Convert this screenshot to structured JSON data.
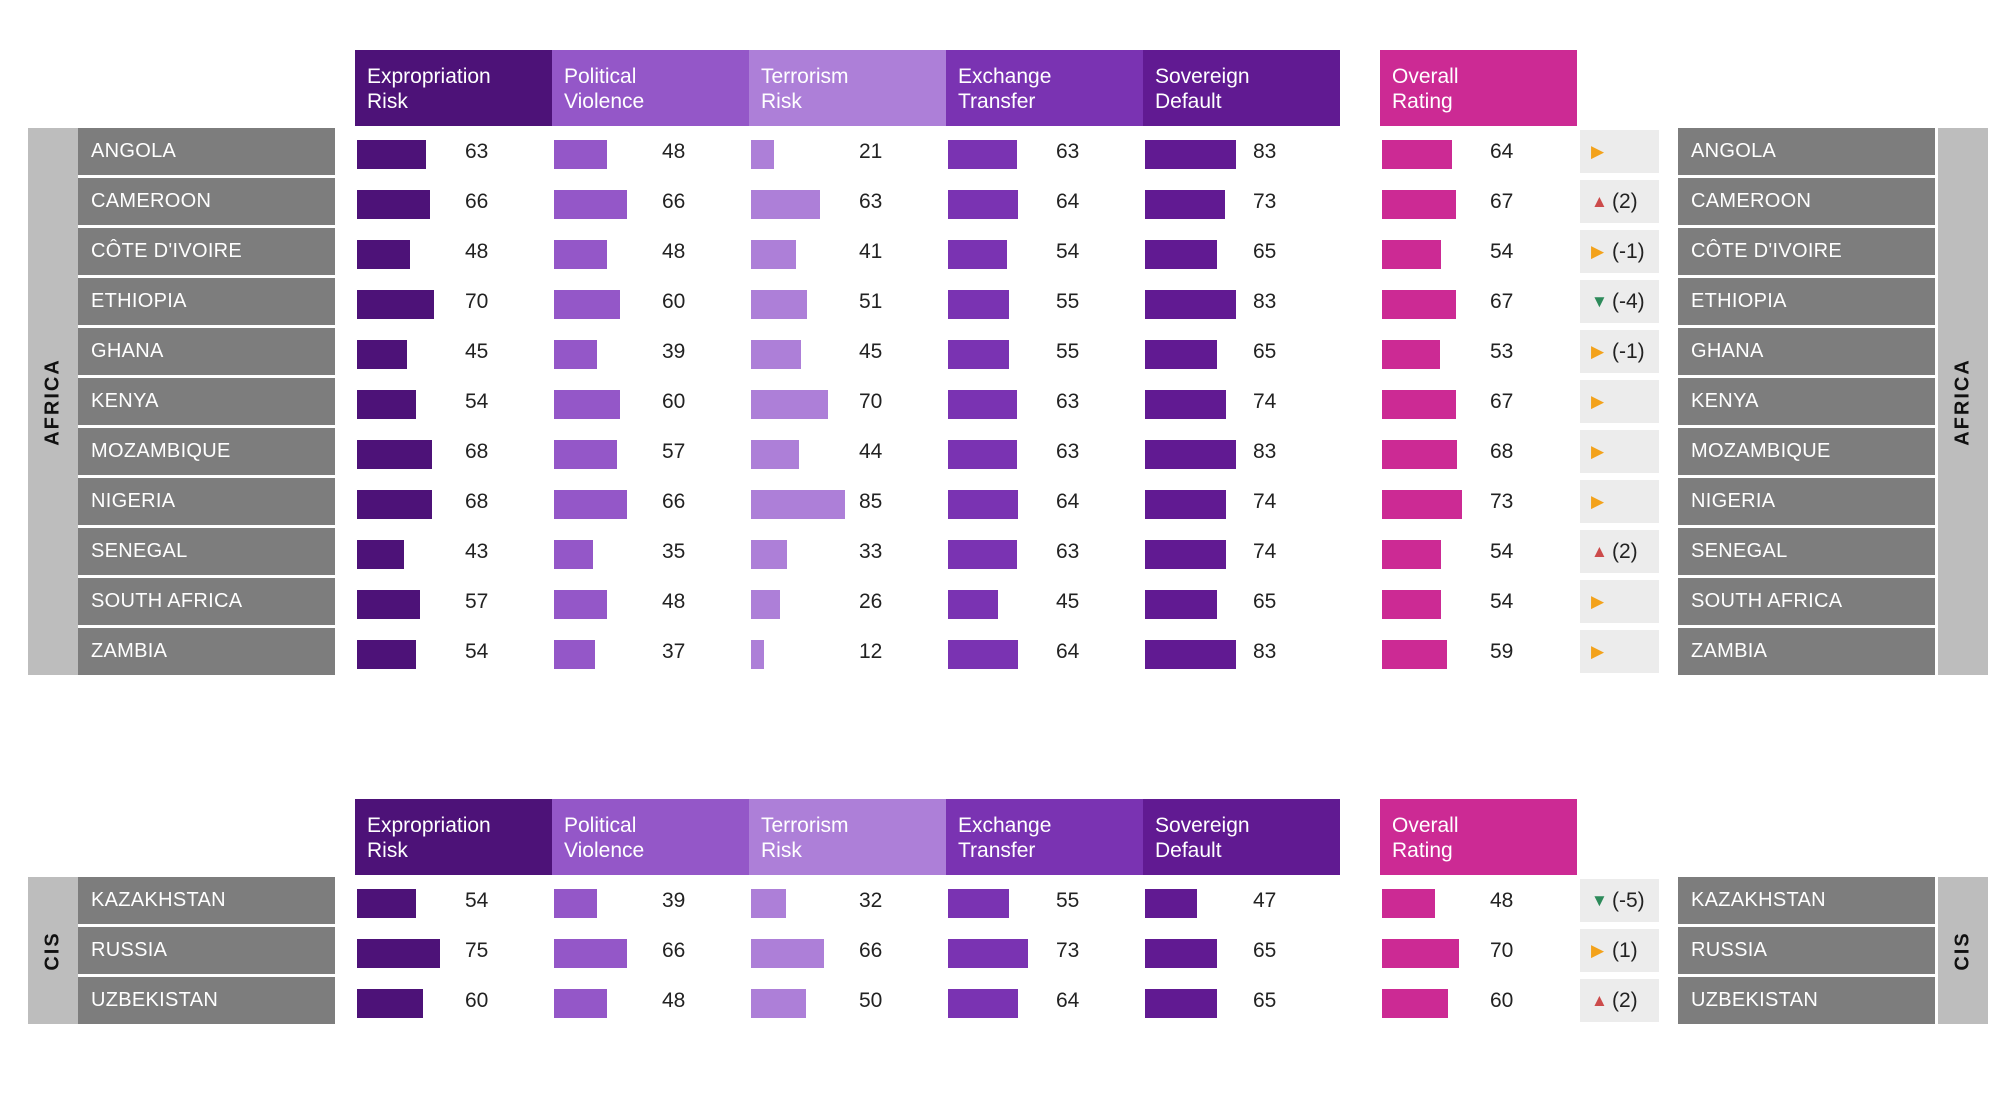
{
  "colors": {
    "expropriation": "#4d1278",
    "political": "#9457c8",
    "terrorism": "#ad7fd8",
    "exchange": "#7a33b2",
    "sovereign": "#611a92",
    "overall": "#cc2a94",
    "up": "#cc4b4b",
    "down": "#2d8a5a",
    "neutral": "#f3a21b",
    "name_bg": "#7d7d7d",
    "region_bg": "#bdbdbd"
  },
  "headers": [
    {
      "key": "expropriation",
      "label": "Expropriation\nRisk"
    },
    {
      "key": "political",
      "label": "Political\nViolence"
    },
    {
      "key": "terrorism",
      "label": "Terrorism\nRisk"
    },
    {
      "key": "exchange",
      "label": "Exchange\nTransfer"
    },
    {
      "key": "sovereign",
      "label": "Sovereign\nDefault"
    }
  ],
  "overall_header": "Overall\nRating",
  "chart_data": {
    "type": "table",
    "value_range": [
      0,
      100
    ],
    "series_keys": [
      "expropriation",
      "political",
      "terrorism",
      "exchange",
      "sovereign",
      "overall"
    ],
    "regions": [
      {
        "name": "AFRICA",
        "countries": [
          {
            "name": "ANGOLA",
            "expropriation": 63,
            "political": 48,
            "terrorism": 21,
            "exchange": 63,
            "sovereign": 83,
            "overall": 64,
            "trend": "neutral",
            "change": ""
          },
          {
            "name": "CAMEROON",
            "expropriation": 66,
            "political": 66,
            "terrorism": 63,
            "exchange": 64,
            "sovereign": 73,
            "overall": 67,
            "trend": "up",
            "change": "(2)"
          },
          {
            "name": "CÔTE D'IVOIRE",
            "expropriation": 48,
            "political": 48,
            "terrorism": 41,
            "exchange": 54,
            "sovereign": 65,
            "overall": 54,
            "trend": "neutral",
            "change": "(-1)"
          },
          {
            "name": "ETHIOPIA",
            "expropriation": 70,
            "political": 60,
            "terrorism": 51,
            "exchange": 55,
            "sovereign": 83,
            "overall": 67,
            "trend": "down",
            "change": "(-4)"
          },
          {
            "name": "GHANA",
            "expropriation": 45,
            "political": 39,
            "terrorism": 45,
            "exchange": 55,
            "sovereign": 65,
            "overall": 53,
            "trend": "neutral",
            "change": "(-1)"
          },
          {
            "name": "KENYA",
            "expropriation": 54,
            "political": 60,
            "terrorism": 70,
            "exchange": 63,
            "sovereign": 74,
            "overall": 67,
            "trend": "neutral",
            "change": ""
          },
          {
            "name": "MOZAMBIQUE",
            "expropriation": 68,
            "political": 57,
            "terrorism": 44,
            "exchange": 63,
            "sovereign": 83,
            "overall": 68,
            "trend": "neutral",
            "change": ""
          },
          {
            "name": "NIGERIA",
            "expropriation": 68,
            "political": 66,
            "terrorism": 85,
            "exchange": 64,
            "sovereign": 74,
            "overall": 73,
            "trend": "neutral",
            "change": ""
          },
          {
            "name": "SENEGAL",
            "expropriation": 43,
            "political": 35,
            "terrorism": 33,
            "exchange": 63,
            "sovereign": 74,
            "overall": 54,
            "trend": "up",
            "change": "(2)"
          },
          {
            "name": "SOUTH AFRICA",
            "expropriation": 57,
            "political": 48,
            "terrorism": 26,
            "exchange": 45,
            "sovereign": 65,
            "overall": 54,
            "trend": "neutral",
            "change": ""
          },
          {
            "name": "ZAMBIA",
            "expropriation": 54,
            "political": 37,
            "terrorism": 12,
            "exchange": 64,
            "sovereign": 83,
            "overall": 59,
            "trend": "neutral",
            "change": ""
          }
        ]
      },
      {
        "name": "CIS",
        "countries": [
          {
            "name": "KAZAKHSTAN",
            "expropriation": 54,
            "political": 39,
            "terrorism": 32,
            "exchange": 55,
            "sovereign": 47,
            "overall": 48,
            "trend": "down",
            "change": "(-5)"
          },
          {
            "name": "RUSSIA",
            "expropriation": 75,
            "political": 66,
            "terrorism": 66,
            "exchange": 73,
            "sovereign": 65,
            "overall": 70,
            "trend": "neutral",
            "change": "(1)"
          },
          {
            "name": "UZBEKISTAN",
            "expropriation": 60,
            "political": 48,
            "terrorism": 50,
            "exchange": 64,
            "sovereign": 65,
            "overall": 60,
            "trend": "up",
            "change": "(2)"
          }
        ]
      }
    ]
  }
}
